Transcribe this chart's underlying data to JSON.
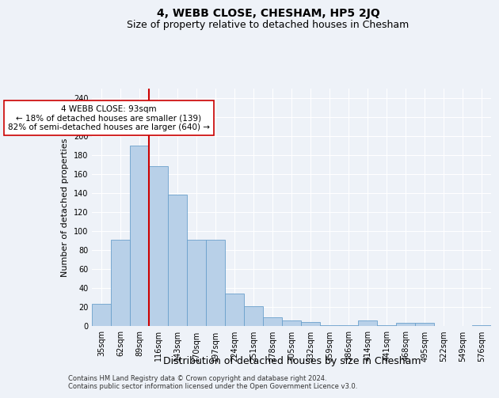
{
  "title": "4, WEBB CLOSE, CHESHAM, HP5 2JQ",
  "subtitle": "Size of property relative to detached houses in Chesham",
  "xlabel": "Distribution of detached houses by size in Chesham",
  "ylabel": "Number of detached properties",
  "categories": [
    "35sqm",
    "62sqm",
    "89sqm",
    "116sqm",
    "143sqm",
    "170sqm",
    "197sqm",
    "224sqm",
    "251sqm",
    "278sqm",
    "305sqm",
    "332sqm",
    "359sqm",
    "386sqm",
    "414sqm",
    "441sqm",
    "468sqm",
    "495sqm",
    "522sqm",
    "549sqm",
    "576sqm"
  ],
  "values": [
    23,
    91,
    190,
    168,
    138,
    91,
    91,
    34,
    21,
    9,
    6,
    4,
    1,
    1,
    6,
    1,
    3,
    3,
    0,
    0,
    1
  ],
  "bar_color": "#b8d0e8",
  "bar_edge_color": "#6aa0cc",
  "vline_color": "#cc0000",
  "annotation_text": "4 WEBB CLOSE: 93sqm\n← 18% of detached houses are smaller (139)\n82% of semi-detached houses are larger (640) →",
  "annotation_box_color": "#ffffff",
  "annotation_box_edge_color": "#cc0000",
  "ylim": [
    0,
    250
  ],
  "yticks": [
    0,
    20,
    40,
    60,
    80,
    100,
    120,
    140,
    160,
    180,
    200,
    220,
    240
  ],
  "footer_line1": "Contains HM Land Registry data © Crown copyright and database right 2024.",
  "footer_line2": "Contains public sector information licensed under the Open Government Licence v3.0.",
  "bg_color": "#eef2f8",
  "plot_bg_color": "#eef2f8",
  "grid_color": "#ffffff",
  "title_fontsize": 10,
  "subtitle_fontsize": 9,
  "tick_fontsize": 7,
  "ylabel_fontsize": 8,
  "xlabel_fontsize": 9,
  "footer_fontsize": 6,
  "annot_fontsize": 7.5
}
